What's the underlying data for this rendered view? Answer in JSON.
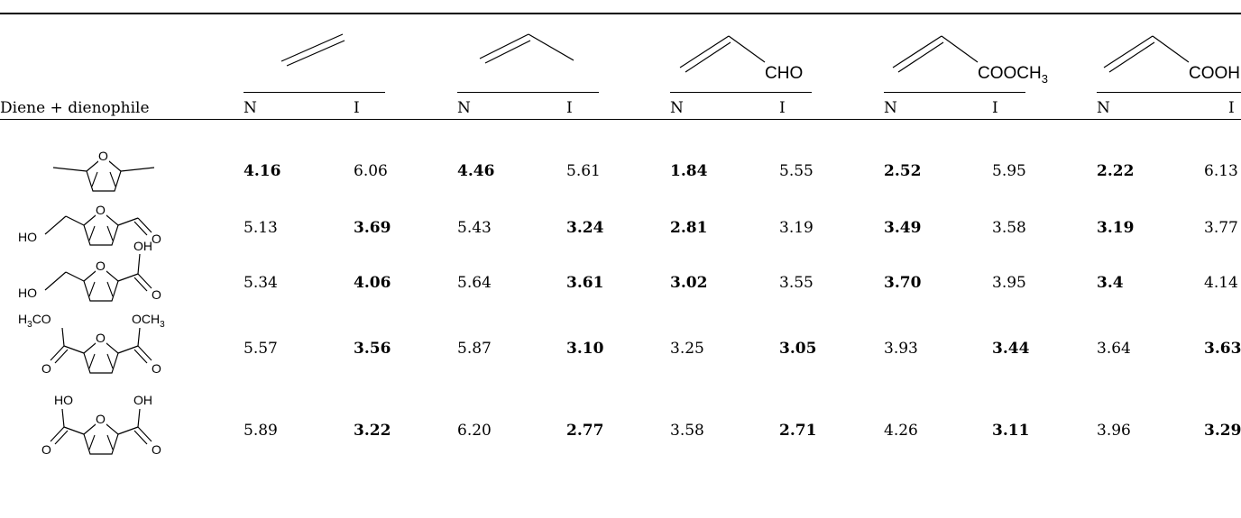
{
  "table": {
    "row_header_label": "Diene + dienophile",
    "dienophiles": [
      {
        "substituent": ""
      },
      {
        "substituent": ""
      },
      {
        "substituent": "CHO"
      },
      {
        "substituent": "COOCH",
        "substituent_sub": "3"
      },
      {
        "substituent": "COOH"
      }
    ],
    "column_labels": {
      "n": "N",
      "i": "I"
    },
    "rows": [
      {
        "diene": {
          "left": "",
          "right": "",
          "left2": "",
          "right2": ""
        },
        "values": [
          {
            "n": "4.16",
            "i": "6.06",
            "n_bold": true,
            "i_bold": false
          },
          {
            "n": "4.46",
            "i": "5.61",
            "n_bold": true,
            "i_bold": false
          },
          {
            "n": "1.84",
            "i": "5.55",
            "n_bold": true,
            "i_bold": false
          },
          {
            "n": "2.52",
            "i": "5.95",
            "n_bold": true,
            "i_bold": false
          },
          {
            "n": "2.22",
            "i": "6.13",
            "n_bold": true,
            "i_bold": false
          }
        ]
      },
      {
        "diene": {
          "left": "HO",
          "right": "O"
        },
        "values": [
          {
            "n": "5.13",
            "i": "3.69",
            "n_bold": false,
            "i_bold": true
          },
          {
            "n": "5.43",
            "i": "3.24",
            "n_bold": false,
            "i_bold": true
          },
          {
            "n": "2.81",
            "i": "3.19",
            "n_bold": true,
            "i_bold": false
          },
          {
            "n": "3.49",
            "i": "3.58",
            "n_bold": true,
            "i_bold": false
          },
          {
            "n": "3.19",
            "i": "3.77",
            "n_bold": true,
            "i_bold": false
          }
        ]
      },
      {
        "diene": {
          "left": "HO",
          "right": "O",
          "top_right": "OH"
        },
        "values": [
          {
            "n": "5.34",
            "i": "4.06",
            "n_bold": false,
            "i_bold": true
          },
          {
            "n": "5.64",
            "i": "3.61",
            "n_bold": false,
            "i_bold": true
          },
          {
            "n": "3.02",
            "i": "3.55",
            "n_bold": true,
            "i_bold": false
          },
          {
            "n": "3.70",
            "i": "3.95",
            "n_bold": true,
            "i_bold": false
          },
          {
            "n": "3.4",
            "i": "4.14",
            "n_bold": true,
            "i_bold": false
          }
        ]
      },
      {
        "diene": {
          "top_left": "H",
          "top_left_sub": "3",
          "top_left_rest": "CO",
          "top_right": "OCH",
          "top_right_sub": "3",
          "left": "O",
          "right": "O"
        },
        "values": [
          {
            "n": "5.57",
            "i": "3.56",
            "n_bold": false,
            "i_bold": true
          },
          {
            "n": "5.87",
            "i": "3.10",
            "n_bold": false,
            "i_bold": true
          },
          {
            "n": "3.25",
            "i": "3.05",
            "n_bold": false,
            "i_bold": true
          },
          {
            "n": "3.93",
            "i": "3.44",
            "n_bold": false,
            "i_bold": true
          },
          {
            "n": "3.64",
            "i": "3.63",
            "n_bold": false,
            "i_bold": true
          }
        ]
      },
      {
        "diene": {
          "top_left": "HO",
          "top_right": "OH",
          "left": "O",
          "right": "O"
        },
        "values": [
          {
            "n": "5.89",
            "i": "3.22",
            "n_bold": false,
            "i_bold": true
          },
          {
            "n": "6.20",
            "i": "2.77",
            "n_bold": false,
            "i_bold": true
          },
          {
            "n": "3.58",
            "i": "2.71",
            "n_bold": false,
            "i_bold": true
          },
          {
            "n": "4.26",
            "i": "3.11",
            "n_bold": false,
            "i_bold": true
          },
          {
            "n": "3.96",
            "i": "3.29",
            "n_bold": false,
            "i_bold": true
          }
        ]
      }
    ],
    "ring_atom": "O"
  }
}
